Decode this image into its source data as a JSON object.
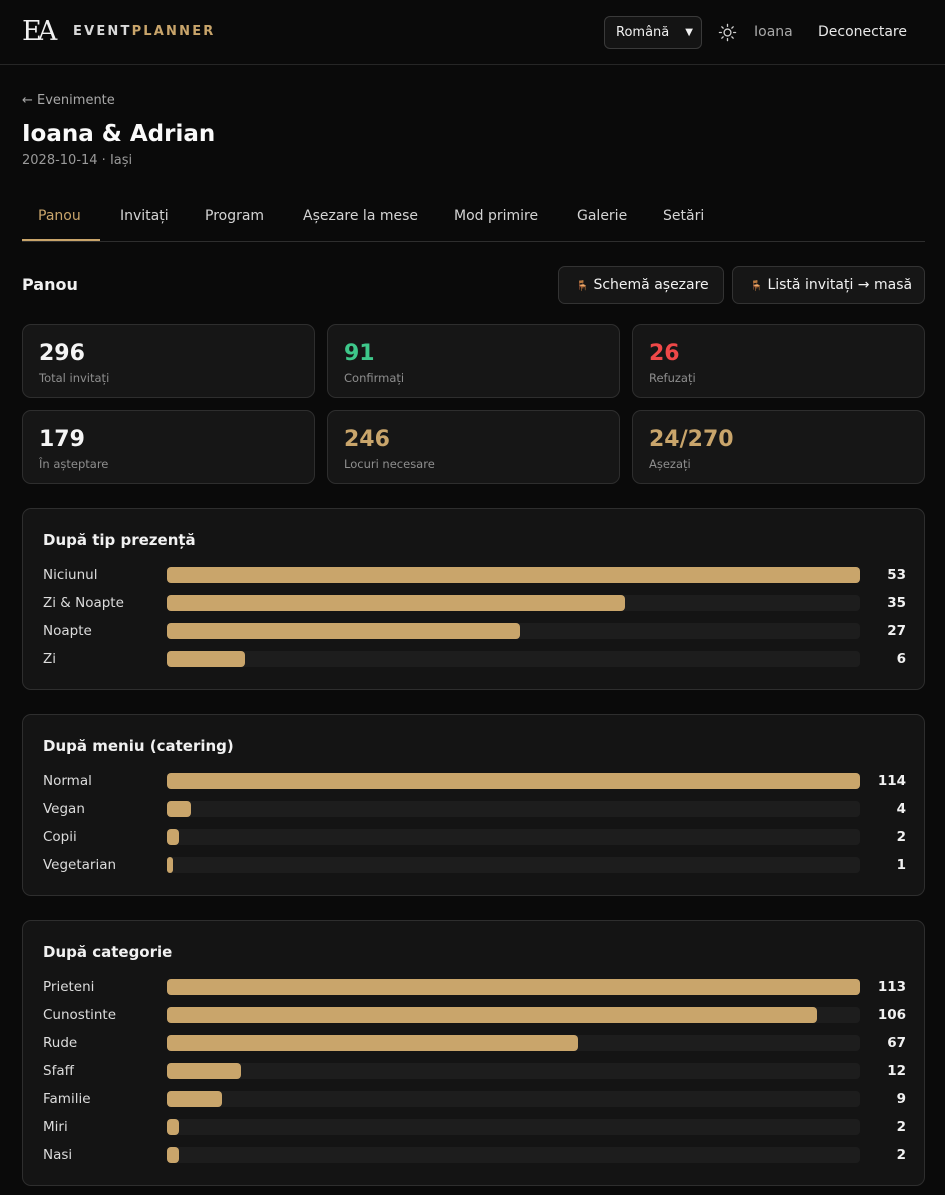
{
  "topbar": {
    "logo_text": "EA",
    "brand_left": "EVENT",
    "brand_right": "PLANNER",
    "language": "Română",
    "user": "Ioana",
    "logout_label": "Deconectare"
  },
  "header": {
    "back_label": "← Evenimente",
    "title": "Ioana & Adrian",
    "meta": "2028-10-14 · Iași"
  },
  "tabs": [
    {
      "label": "Panou",
      "active": true
    },
    {
      "label": "Invitați"
    },
    {
      "label": "Program"
    },
    {
      "label": "Așezare la mese"
    },
    {
      "label": "Mod primire"
    },
    {
      "label": "Galerie"
    },
    {
      "label": "Setări"
    }
  ],
  "panel": {
    "title": "Panou",
    "btn_seating": "Schemă așezare",
    "btn_guestlist": "Listă invitați → masă"
  },
  "stats": [
    {
      "value": "296",
      "label": "Total invitați",
      "color": "#f5f5f5"
    },
    {
      "value": "91",
      "label": "Confirmați",
      "color": "#3ec78a"
    },
    {
      "value": "26",
      "label": "Refuzați",
      "color": "#ef4848"
    },
    {
      "value": "179",
      "label": "În așteptare",
      "color": "#f5f5f5"
    },
    {
      "value": "246",
      "label": "Locuri necesare",
      "color": "#c9a56b"
    },
    {
      "value": "24/270",
      "label": "Așezați",
      "color": "#c9a56b"
    }
  ],
  "colors": {
    "accent": "#c9a56b",
    "background": "#0a0a0a",
    "card": "#161616"
  },
  "breakdowns": [
    {
      "title": "După tip prezență",
      "rows": [
        {
          "label": "Niciunul",
          "value": 53
        },
        {
          "label": "Zi & Noapte",
          "value": 35
        },
        {
          "label": "Noapte",
          "value": 27
        },
        {
          "label": "Zi",
          "value": 6
        }
      ]
    },
    {
      "title": "După meniu (catering)",
      "rows": [
        {
          "label": "Normal",
          "value": 114
        },
        {
          "label": "Vegan",
          "value": 4
        },
        {
          "label": "Copii",
          "value": 2
        },
        {
          "label": "Vegetarian",
          "value": 1
        }
      ]
    },
    {
      "title": "După categorie",
      "rows": [
        {
          "label": "Prieteni",
          "value": 113
        },
        {
          "label": "Cunostinte",
          "value": 106
        },
        {
          "label": "Rude",
          "value": 67
        },
        {
          "label": "Sfaff",
          "value": 12
        },
        {
          "label": "Familie",
          "value": 9
        },
        {
          "label": "Miri",
          "value": 2
        },
        {
          "label": "Nasi",
          "value": 2
        }
      ]
    }
  ]
}
